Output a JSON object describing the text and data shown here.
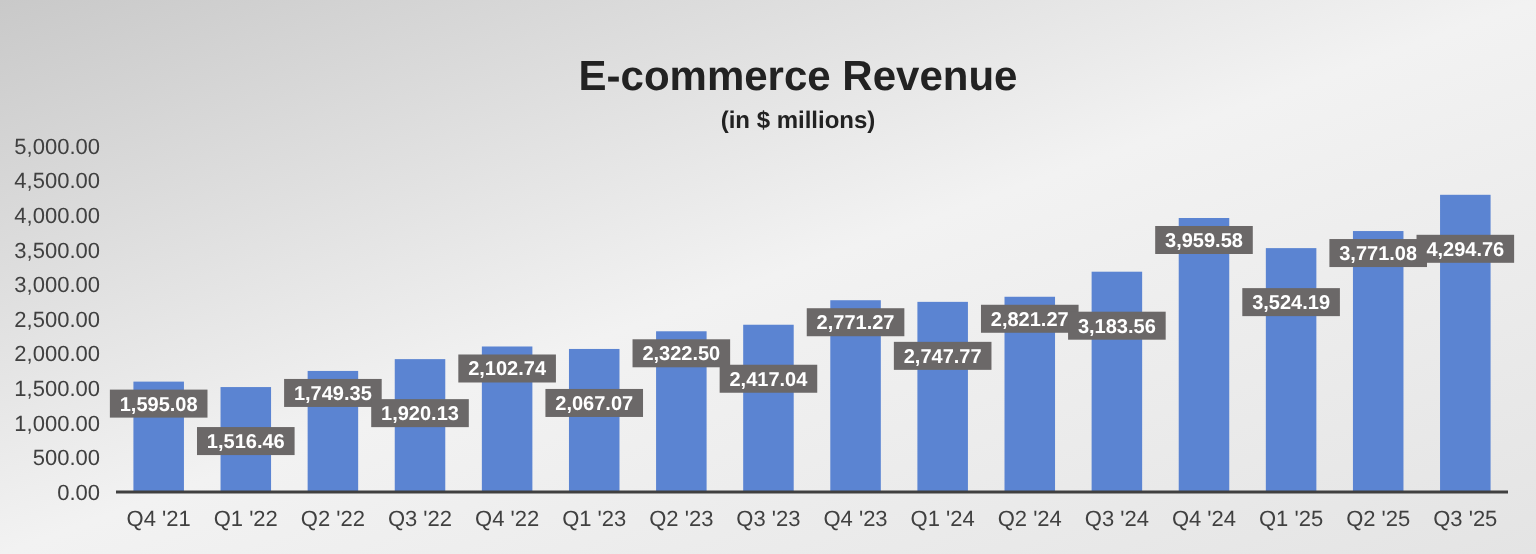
{
  "chart_data": {
    "type": "bar",
    "title": "E-commerce Revenue",
    "subtitle": "(in $ millions)",
    "categories": [
      "Q4 '21",
      "Q1 '22",
      "Q2 '22",
      "Q3 '22",
      "Q4 '22",
      "Q1 '23",
      "Q2 '23",
      "Q3 '23",
      "Q4 '23",
      "Q1 '24",
      "Q2 '24",
      "Q3 '24",
      "Q4 '24",
      "Q1 '25",
      "Q2 '25",
      "Q3 '25"
    ],
    "values": [
      1595.08,
      1516.46,
      1749.35,
      1920.13,
      2102.74,
      2067.07,
      2322.5,
      2417.04,
      2771.27,
      2747.77,
      2821.27,
      3183.56,
      3959.58,
      3524.19,
      3771.08,
      4294.76
    ],
    "value_labels": [
      "1,595.08",
      "1,516.46",
      "1,749.35",
      "1,920.13",
      "2,102.74",
      "2,067.07",
      "2,322.50",
      "2,417.04",
      "2,771.27",
      "2,747.77",
      "2,821.27",
      "3,183.56",
      "3,959.58",
      "3,524.19",
      "3,771.08",
      "4,294.76"
    ],
    "color": "#5b84d2",
    "ylim": [
      0,
      5000
    ],
    "yticks": [
      {
        "value": 0,
        "label": "0.00"
      },
      {
        "value": 500,
        "label": "500.00"
      },
      {
        "value": 1000,
        "label": "1,000.00"
      },
      {
        "value": 1500,
        "label": "1,500.00"
      },
      {
        "value": 2000,
        "label": "2,000.00"
      },
      {
        "value": 2500,
        "label": "2,500.00"
      },
      {
        "value": 3000,
        "label": "3,000.00"
      },
      {
        "value": 3500,
        "label": "3,500.00"
      },
      {
        "value": 4000,
        "label": "4,000.00"
      },
      {
        "value": 4500,
        "label": "4,500.00"
      },
      {
        "value": 5000,
        "label": "5,000.00"
      }
    ],
    "grid": false
  }
}
